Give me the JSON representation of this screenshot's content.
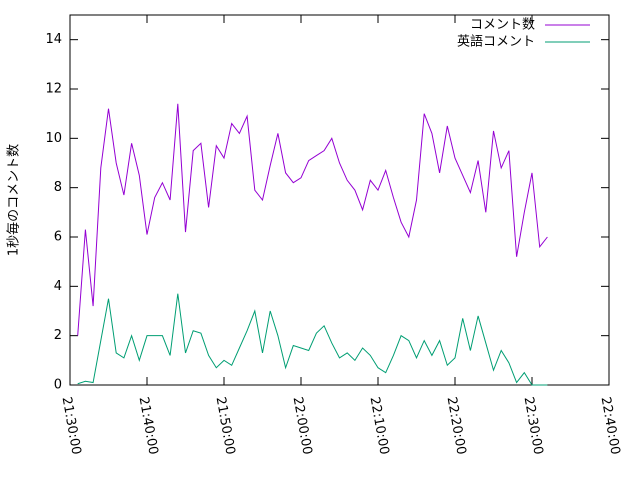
{
  "chart_data": {
    "type": "line",
    "ylabel": "1秒毎のコメント数",
    "x": [
      "21:31:00",
      "21:32:00",
      "21:33:00",
      "21:34:00",
      "21:35:00",
      "21:36:00",
      "21:37:00",
      "21:38:00",
      "21:39:00",
      "21:40:00",
      "21:41:00",
      "21:42:00",
      "21:43:00",
      "21:44:00",
      "21:45:00",
      "21:46:00",
      "21:47:00",
      "21:48:00",
      "21:49:00",
      "21:50:00",
      "21:51:00",
      "21:52:00",
      "21:53:00",
      "21:54:00",
      "21:55:00",
      "21:56:00",
      "21:57:00",
      "21:58:00",
      "21:59:00",
      "22:00:00",
      "22:01:00",
      "22:02:00",
      "22:03:00",
      "22:04:00",
      "22:05:00",
      "22:06:00",
      "22:07:00",
      "22:08:00",
      "22:09:00",
      "22:10:00",
      "22:11:00",
      "22:12:00",
      "22:13:00",
      "22:14:00",
      "22:15:00",
      "22:16:00",
      "22:17:00",
      "22:18:00",
      "22:19:00",
      "22:20:00",
      "22:21:00",
      "22:22:00",
      "22:23:00",
      "22:24:00",
      "22:25:00",
      "22:26:00",
      "22:27:00",
      "22:28:00",
      "22:29:00",
      "22:30:00",
      "22:31:00",
      "22:32:00"
    ],
    "series": [
      {
        "name": "コメント数",
        "color": "#9400d3",
        "values": [
          2.0,
          6.3,
          3.2,
          8.8,
          11.2,
          9.0,
          7.7,
          9.8,
          8.5,
          6.1,
          7.6,
          8.2,
          7.5,
          11.4,
          6.2,
          9.5,
          9.8,
          7.2,
          9.7,
          9.2,
          10.6,
          10.2,
          10.9,
          7.9,
          7.5,
          8.9,
          10.2,
          8.6,
          8.2,
          8.4,
          9.1,
          9.3,
          9.5,
          10.0,
          9.0,
          8.3,
          7.9,
          7.1,
          8.3,
          7.9,
          8.7,
          7.6,
          6.6,
          6.0,
          7.5,
          11.0,
          10.2,
          8.6,
          10.5,
          9.2,
          8.5,
          7.8,
          9.1,
          7.0,
          10.3,
          8.8,
          9.5,
          5.2,
          7.0,
          8.6,
          5.6,
          6.0
        ]
      },
      {
        "name": "英語コメント",
        "color": "#009e73",
        "values": [
          0.05,
          0.15,
          0.1,
          1.8,
          3.5,
          1.3,
          1.1,
          2.0,
          1.0,
          2.0,
          2.0,
          2.0,
          1.2,
          3.7,
          1.3,
          2.2,
          2.1,
          1.2,
          0.7,
          1.0,
          0.8,
          1.5,
          2.2,
          3.0,
          1.3,
          3.0,
          2.0,
          0.7,
          1.6,
          1.5,
          1.4,
          2.1,
          2.4,
          1.7,
          1.1,
          1.3,
          1.0,
          1.5,
          1.2,
          0.7,
          0.5,
          1.2,
          2.0,
          1.8,
          1.1,
          1.8,
          1.2,
          1.8,
          0.8,
          1.1,
          2.7,
          1.4,
          2.8,
          1.7,
          0.6,
          1.4,
          0.9,
          0.1,
          0.5,
          0.0,
          0.0,
          0.0
        ]
      }
    ],
    "xlim": [
      "21:30:00",
      "22:40:00"
    ],
    "xticks": [
      "21:30:00",
      "21:40:00",
      "21:50:00",
      "22:00:00",
      "22:10:00",
      "22:20:00",
      "22:30:00",
      "22:40:00"
    ],
    "ylim": [
      0,
      15
    ],
    "yticks": [
      0,
      2,
      4,
      6,
      8,
      10,
      12,
      14
    ],
    "legend": "top-right"
  }
}
